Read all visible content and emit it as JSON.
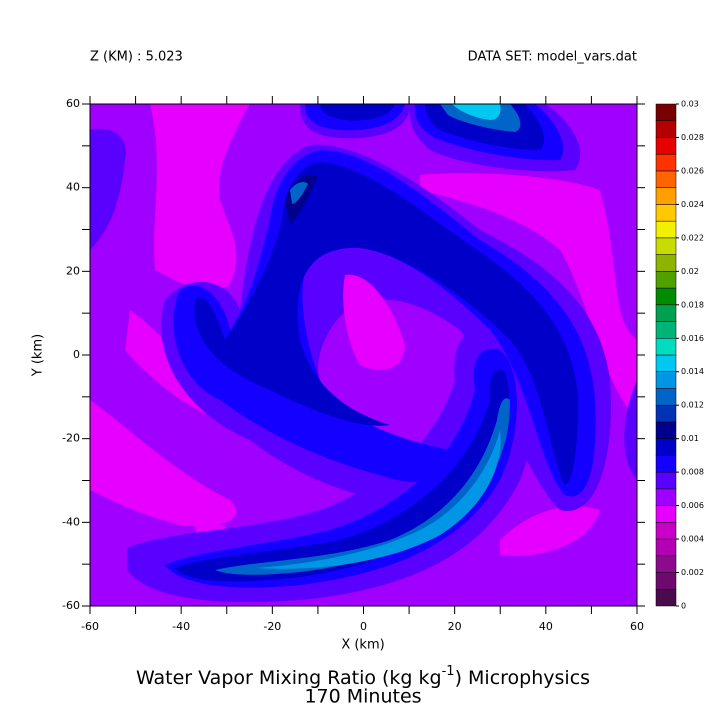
{
  "chart_data": {
    "type": "contour",
    "header_left": "Z (KM) : 5.023",
    "header_right": "DATA SET: model_vars.dat",
    "title": "Water Vapor Mixing Ratio (kg kg",
    "title_superscript": "-1",
    "title_end": ") Microphysics",
    "subtitle": "170 Minutes",
    "x_label": "X (km)",
    "y_label": "Y (km)",
    "xlim": [
      -60,
      60
    ],
    "ylim": [
      -60,
      60
    ],
    "xticks": [
      -60,
      -40,
      -20,
      0,
      20,
      40,
      60
    ],
    "yticks": [
      -60,
      -40,
      -20,
      0,
      20,
      40,
      60
    ],
    "xminorticks": [
      -50,
      -30,
      -10,
      10,
      30,
      50
    ],
    "yminorticks": [
      -50,
      -30,
      -10,
      10,
      30,
      50
    ],
    "colorbar": {
      "clim": [
        0,
        0.03
      ],
      "ticks": [
        0,
        0.002,
        0.004,
        0.006,
        0.008,
        0.01,
        0.012,
        0.014,
        0.016,
        0.018,
        0.02,
        0.022,
        0.024,
        0.026,
        0.028,
        0.03
      ],
      "colors": [
        "#4b0a4b",
        "#6e0a6e",
        "#8c0a8c",
        "#b400b4",
        "#c800c8",
        "#e600ff",
        "#a000ff",
        "#5a00ff",
        "#1400ff",
        "#0000c8",
        "#00008c",
        "#0032b4",
        "#0064c8",
        "#0096e6",
        "#00c8f0",
        "#00dcc0",
        "#00b478",
        "#00a050",
        "#008c00",
        "#50a000",
        "#8cb400",
        "#c8dc00",
        "#f0f000",
        "#ffc800",
        "#ffa000",
        "#ff6400",
        "#ff3200",
        "#e60000",
        "#b40000",
        "#780000"
      ]
    }
  }
}
